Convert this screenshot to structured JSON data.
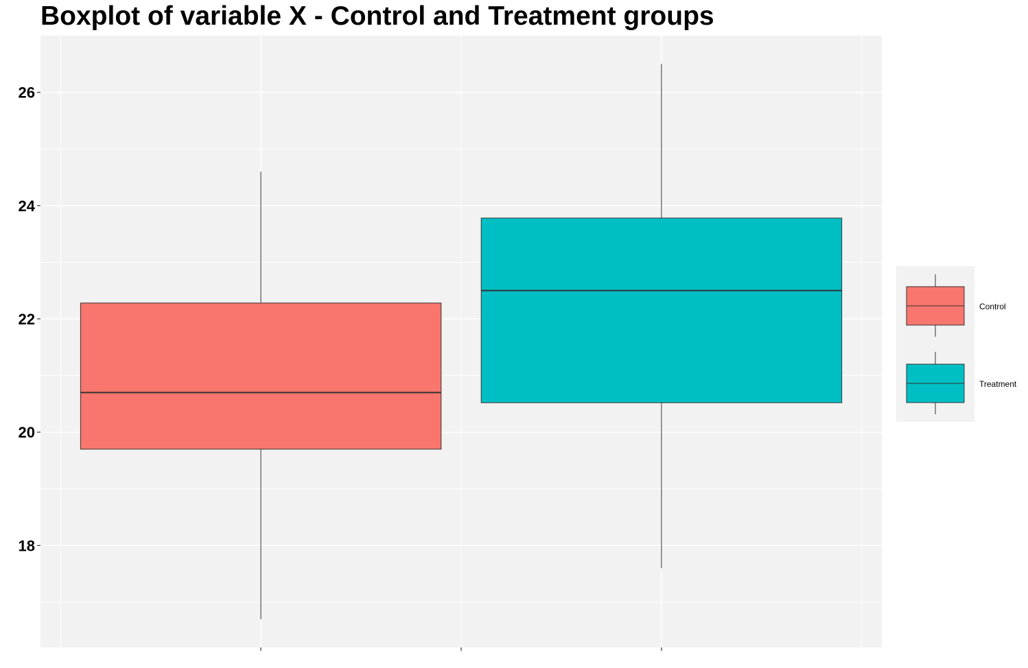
{
  "chart_data": {
    "type": "boxplot",
    "title": "Boxplot of variable X - Control and Treatment groups",
    "xlabel": "",
    "ylabel": "",
    "ylim": [
      16.2,
      27.0
    ],
    "y_ticks": [
      18,
      20,
      22,
      24,
      26
    ],
    "y_tick_labels": [
      "18",
      "20",
      "22",
      "24",
      "26"
    ],
    "grid": true,
    "legend_position": "right",
    "groups": [
      {
        "name": "Control",
        "color": "#F8766D",
        "whisker_low": 16.7,
        "q1": 19.7,
        "median": 20.7,
        "q3": 22.28,
        "whisker_high": 24.6
      },
      {
        "name": "Treatment",
        "color": "#00BFC4",
        "whisker_low": 17.6,
        "q1": 20.52,
        "median": 22.5,
        "q3": 23.78,
        "whisker_high": 26.5
      }
    ]
  },
  "colors": {
    "panel_background": "#F2F2F2",
    "grid": "#FFFFFF",
    "outline": "#333333"
  }
}
